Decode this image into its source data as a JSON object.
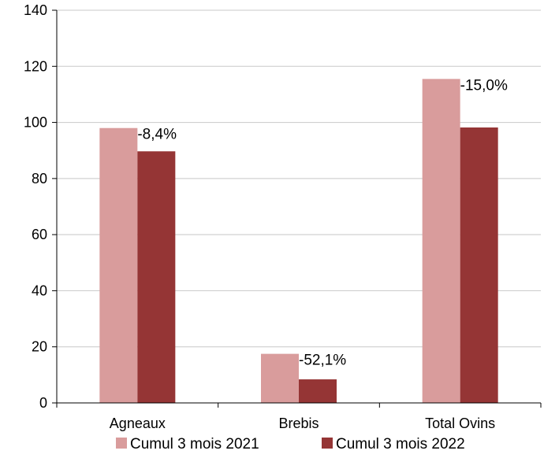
{
  "chart_data": {
    "type": "bar",
    "categories": [
      "Agneaux",
      "Brebis",
      "Total Ovins"
    ],
    "series": [
      {
        "name": "Cumul 3 mois 2021",
        "color": "#d99c9c",
        "values": [
          98,
          17.5,
          115.5
        ]
      },
      {
        "name": "Cumul 3 mois 2022",
        "color": "#953535",
        "values": [
          89.7,
          8.4,
          98.2
        ]
      }
    ],
    "annotations": [
      "-8,4%",
      "-52,1%",
      "-15,0%"
    ],
    "ylim": [
      0,
      140
    ],
    "yticks": [
      0,
      20,
      40,
      60,
      80,
      100,
      120,
      140
    ],
    "grid": true,
    "grid_color": "#c8c8c8",
    "legend_position": "bottom"
  }
}
